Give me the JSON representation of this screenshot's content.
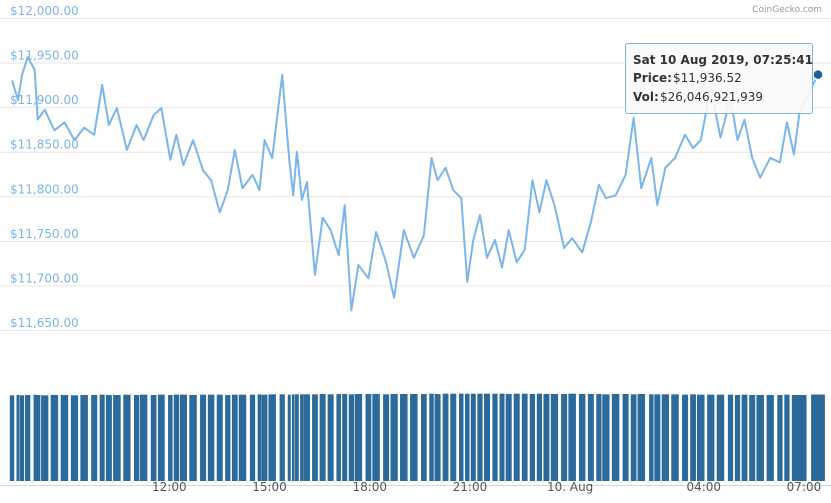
{
  "chart_data": {
    "type": "line",
    "credit": "CoinGecko.com",
    "x": [
      7.29,
      7.47,
      7.59,
      7.76,
      7.97,
      8.06,
      8.27,
      8.56,
      8.86,
      9.16,
      9.45,
      9.75,
      9.99,
      10.19,
      10.43,
      10.73,
      11.02,
      11.23,
      11.53,
      11.76,
      12.03,
      12.21,
      12.42,
      12.71,
      13.01,
      13.25,
      13.51,
      13.75,
      13.96,
      14.19,
      14.49,
      14.7,
      14.85,
      15.08,
      15.38,
      15.59,
      15.71,
      15.82,
      15.97,
      16.12,
      16.36,
      16.59,
      16.83,
      17.07,
      17.25,
      17.45,
      17.66,
      17.96,
      18.19,
      18.49,
      18.73,
      19.02,
      19.32,
      19.62,
      19.85,
      20.03,
      20.27,
      20.5,
      20.74,
      20.92,
      21.1,
      21.3,
      21.51,
      21.75,
      21.96,
      22.16,
      22.4,
      22.64,
      22.87,
      23.08,
      23.29,
      23.53,
      23.82,
      24.06,
      24.36,
      24.62,
      24.86,
      25.07,
      25.36,
      25.66,
      25.9,
      26.13,
      26.43,
      26.61,
      26.85,
      27.14,
      27.44,
      27.68,
      27.91,
      28.21,
      28.5,
      28.8,
      29.01,
      29.22,
      29.45,
      29.69,
      29.99,
      30.28,
      30.49,
      30.7,
      30.87,
      31.42
    ],
    "xlim": [
      7.29,
      31.42
    ],
    "xticks": [
      {
        "value": 12,
        "label": "12:00"
      },
      {
        "value": 15,
        "label": "15:00"
      },
      {
        "value": 18,
        "label": "18:00"
      },
      {
        "value": 21,
        "label": "21:00"
      },
      {
        "value": 24,
        "label": "10. Aug"
      },
      {
        "value": 28,
        "label": "04:00"
      },
      {
        "value": 31,
        "label": "07:00"
      }
    ],
    "price": {
      "color": "#7cb5ec",
      "values": [
        11930,
        11908,
        11936,
        11956,
        11942,
        11886,
        11897,
        11874,
        11883,
        11863,
        11877,
        11869,
        11925,
        11880,
        11899,
        11852,
        11880,
        11863,
        11891,
        11899,
        11841,
        11869,
        11835,
        11863,
        11829,
        11818,
        11782,
        11807,
        11852,
        11809,
        11824,
        11807,
        11863,
        11843,
        11936,
        11841,
        11801,
        11850,
        11796,
        11816,
        11712,
        11776,
        11762,
        11734,
        11790,
        11672,
        11723,
        11708,
        11760,
        11726,
        11686,
        11762,
        11731,
        11756,
        11843,
        11818,
        11832,
        11807,
        11798,
        11704,
        11751,
        11779,
        11731,
        11751,
        11720,
        11762,
        11726,
        11740,
        11818,
        11782,
        11818,
        11790,
        11742,
        11753,
        11737,
        11771,
        11813,
        11798,
        11801,
        11824,
        11888,
        11809,
        11843,
        11790,
        11832,
        11843,
        11869,
        11854,
        11863,
        11922,
        11866,
        11910,
        11863,
        11886,
        11843,
        11821,
        11843,
        11838,
        11883,
        11847,
        11895,
        11936.52
      ]
    },
    "ylim": [
      11650,
      12000
    ],
    "yticks": [
      {
        "value": 11650,
        "label": "$11,650.00"
      },
      {
        "value": 11700,
        "label": "$11,700.00"
      },
      {
        "value": 11750,
        "label": "$11,750.00"
      },
      {
        "value": 11800,
        "label": "$11,800.00"
      },
      {
        "value": 11850,
        "label": "$11,850.00"
      },
      {
        "value": 11900,
        "label": "$11,900.00"
      },
      {
        "value": 11950,
        "label": "$11,950.00"
      },
      {
        "value": 12000,
        "label": "$12,000.00"
      }
    ],
    "grid": true,
    "volume": {
      "color": "#2b6a9b",
      "values": [
        25800000000,
        25900000000,
        25800000000,
        25900000000,
        26000000000,
        25900000000,
        25800000000,
        25900000000,
        25900000000,
        25800000000,
        25900000000,
        25900000000,
        26000000000,
        25900000000,
        25900000000,
        26000000000,
        25900000000,
        26000000000,
        25900000000,
        26000000000,
        25900000000,
        26000000000,
        26000000000,
        25900000000,
        26000000000,
        26000000000,
        26000000000,
        25900000000,
        26000000000,
        26000000000,
        26000000000,
        26100000000,
        26000000000,
        26100000000,
        26100000000,
        26000000000,
        26100000000,
        26100000000,
        26100000000,
        26100000000,
        26100000000,
        26200000000,
        26100000000,
        26200000000,
        26200000000,
        26100000000,
        26200000000,
        26200000000,
        26200000000,
        26100000000,
        26200000000,
        26200000000,
        26200000000,
        26200000000,
        26300000000,
        26200000000,
        26300000000,
        26300000000,
        26300000000,
        26300000000,
        26300000000,
        26300000000,
        26300000000,
        26300000000,
        26300000000,
        26200000000,
        26300000000,
        26300000000,
        26200000000,
        26300000000,
        26200000000,
        26200000000,
        26200000000,
        26300000000,
        26200000000,
        26200000000,
        26200000000,
        26100000000,
        26200000000,
        26200000000,
        26100000000,
        26200000000,
        26100000000,
        26100000000,
        26100000000,
        26100000000,
        26000000000,
        26100000000,
        26000000000,
        26000000000,
        26000000000,
        26000000000,
        25900000000,
        26000000000,
        25900000000,
        25900000000,
        25900000000,
        25900000000,
        26000000000,
        25900000000,
        25900000000,
        26046921939
      ]
    },
    "vlim": [
      0,
      26500000000
    ],
    "tooltip": {
      "title": "Sat 10 Aug 2019, 07:25:41",
      "price_label": "Price:",
      "price": "$11,936.52",
      "vol_label": "Vol:",
      "vol": "$26,046,921,939"
    }
  }
}
